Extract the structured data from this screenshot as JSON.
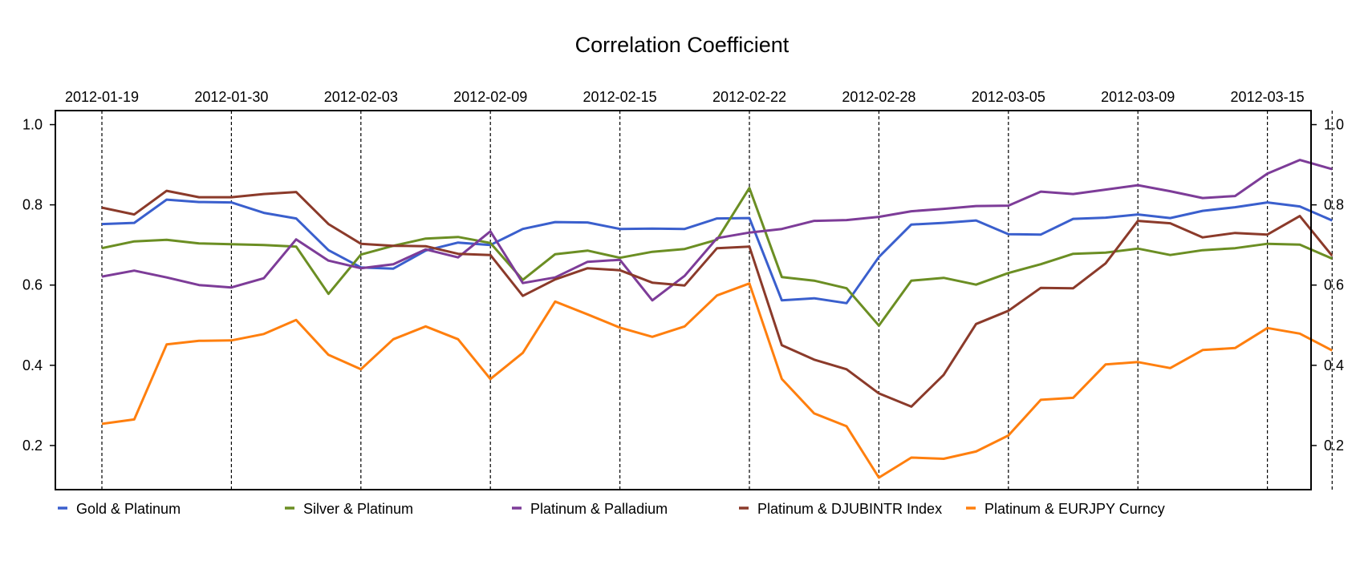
{
  "chart_data": {
    "type": "line",
    "title": "Correlation Coefficient",
    "xlabel": "",
    "ylabel": "",
    "ylim": [
      0.09,
      1.035
    ],
    "y_ticks": [
      0.2,
      0.4,
      0.6,
      0.8,
      1.0
    ],
    "y_tick_labels": [
      "0.2",
      "0.4",
      "0.6",
      "0.8",
      "1.0"
    ],
    "y_axis_both_sides": true,
    "x_tick_labels": [
      "2012-01-19",
      "2012-01-30",
      "2012-02-03",
      "2012-02-09",
      "2012-02-15",
      "2012-02-22",
      "2012-02-28",
      "2012-03-05",
      "2012-03-09",
      "2012-03-15"
    ],
    "x_tick_index": [
      0,
      4,
      8,
      12,
      16,
      20,
      24,
      28,
      32,
      36
    ],
    "vertical_lines_index": [
      0,
      4,
      8,
      12,
      16,
      20,
      24,
      28,
      32,
      36,
      38
    ],
    "grid": "dashed vertical lines",
    "legend_position": "bottom",
    "series": [
      {
        "name": "Gold  &  Platinum",
        "color": "#3a5fcd",
        "values": [
          0.752,
          0.755,
          0.813,
          0.807,
          0.806,
          0.78,
          0.766,
          0.687,
          0.644,
          0.641,
          0.686,
          0.706,
          0.7,
          0.74,
          0.757,
          0.756,
          0.74,
          0.741,
          0.74,
          0.766,
          0.767,
          0.562,
          0.567,
          0.555,
          0.67,
          0.751,
          0.755,
          0.761,
          0.727,
          0.726,
          0.765,
          0.768,
          0.776,
          0.767,
          0.785,
          0.794,
          0.806,
          0.796,
          0.761
        ]
      },
      {
        "name": "Silver  &  Platinum",
        "color": "#6b8e23",
        "values": [
          0.692,
          0.709,
          0.713,
          0.704,
          0.702,
          0.7,
          0.696,
          0.578,
          0.676,
          0.698,
          0.716,
          0.72,
          0.705,
          0.613,
          0.677,
          0.686,
          0.668,
          0.683,
          0.69,
          0.713,
          0.842,
          0.62,
          0.611,
          0.592,
          0.499,
          0.611,
          0.618,
          0.601,
          0.63,
          0.652,
          0.678,
          0.681,
          0.691,
          0.675,
          0.687,
          0.692,
          0.703,
          0.701,
          0.666
        ]
      },
      {
        "name": "Platinum  &  Palladium",
        "color": "#7d3c98",
        "values": [
          0.621,
          0.636,
          0.619,
          0.6,
          0.594,
          0.617,
          0.714,
          0.661,
          0.642,
          0.652,
          0.689,
          0.669,
          0.734,
          0.605,
          0.619,
          0.658,
          0.663,
          0.562,
          0.623,
          0.717,
          0.731,
          0.74,
          0.76,
          0.762,
          0.77,
          0.784,
          0.79,
          0.797,
          0.798,
          0.833,
          0.827,
          0.838,
          0.849,
          0.834,
          0.817,
          0.822,
          0.878,
          0.912,
          0.889
        ]
      },
      {
        "name": "Platinum  &  DJUBINTR Index",
        "color": "#8b3a2a",
        "values": [
          0.793,
          0.776,
          0.835,
          0.819,
          0.819,
          0.827,
          0.832,
          0.752,
          0.703,
          0.698,
          0.697,
          0.678,
          0.675,
          0.573,
          0.614,
          0.642,
          0.637,
          0.606,
          0.599,
          0.692,
          0.696,
          0.45,
          0.414,
          0.39,
          0.33,
          0.297,
          0.376,
          0.503,
          0.536,
          0.593,
          0.592,
          0.654,
          0.76,
          0.754,
          0.719,
          0.73,
          0.726,
          0.772,
          0.673
        ]
      },
      {
        "name": "Platinum  &  EURJPY Curncy",
        "color": "#ff7f0e",
        "values": [
          0.254,
          0.265,
          0.452,
          0.461,
          0.462,
          0.478,
          0.513,
          0.426,
          0.39,
          0.465,
          0.497,
          0.465,
          0.366,
          0.431,
          0.559,
          0.527,
          0.494,
          0.471,
          0.497,
          0.574,
          0.604,
          0.366,
          0.28,
          0.248,
          0.12,
          0.17,
          0.167,
          0.185,
          0.225,
          0.314,
          0.319,
          0.402,
          0.408,
          0.393,
          0.438,
          0.443,
          0.493,
          0.479,
          0.437
        ]
      }
    ]
  }
}
